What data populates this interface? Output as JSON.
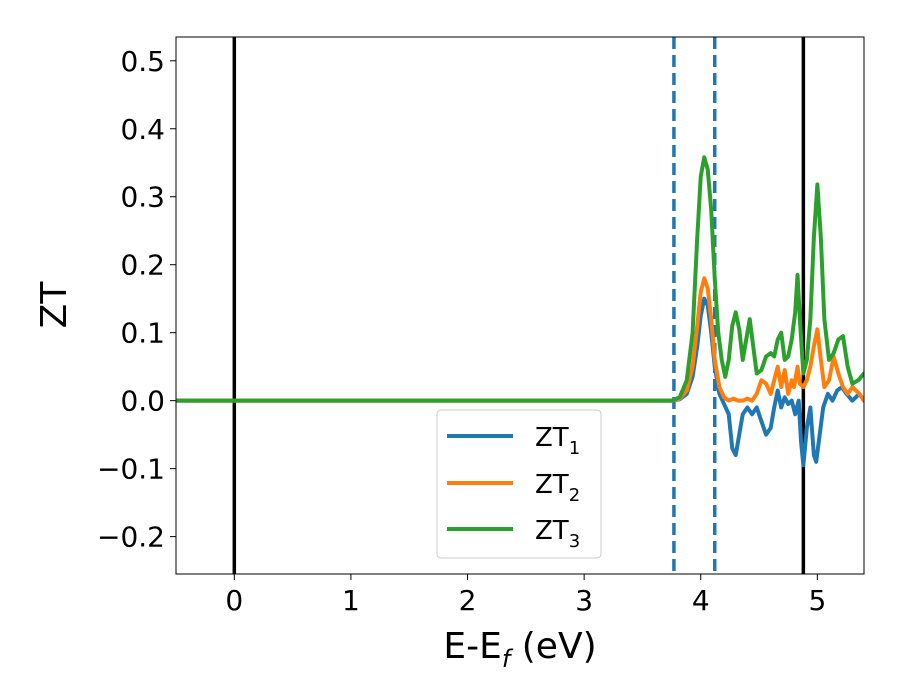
{
  "chart_data": {
    "type": "line",
    "xlabel": "E-E",
    "xlabel_sub": "f",
    "xlabel_unit": " (eV)",
    "ylabel": "ZT",
    "xlim": [
      -0.5,
      5.4
    ],
    "ylim": [
      -0.255,
      0.535
    ],
    "x_ticks": [
      0,
      1,
      2,
      3,
      4,
      5
    ],
    "x_tick_labels": [
      "0",
      "1",
      "2",
      "3",
      "4",
      "5"
    ],
    "y_ticks": [
      -0.2,
      -0.1,
      0.0,
      0.1,
      0.2,
      0.3,
      0.4,
      0.5
    ],
    "y_tick_labels": [
      "−0.2",
      "−0.1",
      "0.0",
      "0.1",
      "0.2",
      "0.3",
      "0.4",
      "0.5"
    ],
    "grid": false,
    "legend_position": "bottom-center",
    "vlines_solid": [
      0.0,
      4.88
    ],
    "vlines_dashed": [
      3.77,
      4.12
    ],
    "vline_solid_color": "#000000",
    "vline_dashed_color": "#1f77b4",
    "series": [
      {
        "name": "ZT",
        "name_sub": "1",
        "color": "#1f77b4",
        "points": [
          [
            -0.5,
            0.0
          ],
          [
            3.6,
            0.0
          ],
          [
            3.75,
            0.0
          ],
          [
            3.82,
            0.002
          ],
          [
            3.88,
            0.01
          ],
          [
            3.93,
            0.035
          ],
          [
            3.97,
            0.08
          ],
          [
            4.0,
            0.125
          ],
          [
            4.03,
            0.15
          ],
          [
            4.06,
            0.14
          ],
          [
            4.09,
            0.1
          ],
          [
            4.12,
            0.05
          ],
          [
            4.16,
            0.01
          ],
          [
            4.2,
            -0.005
          ],
          [
            4.24,
            -0.02
          ],
          [
            4.27,
            -0.07
          ],
          [
            4.3,
            -0.08
          ],
          [
            4.33,
            -0.05
          ],
          [
            4.36,
            -0.02
          ],
          [
            4.4,
            -0.01
          ],
          [
            4.44,
            -0.02
          ],
          [
            4.48,
            -0.01
          ],
          [
            4.52,
            -0.03
          ],
          [
            4.56,
            -0.05
          ],
          [
            4.6,
            -0.04
          ],
          [
            4.63,
            -0.01
          ],
          [
            4.66,
            0.015
          ],
          [
            4.69,
            -0.01
          ],
          [
            4.72,
            0.005
          ],
          [
            4.75,
            -0.005
          ],
          [
            4.78,
            0.0
          ],
          [
            4.81,
            -0.02
          ],
          [
            4.84,
            0.0
          ],
          [
            4.86,
            -0.06
          ],
          [
            4.88,
            -0.095
          ],
          [
            4.91,
            -0.04
          ],
          [
            4.94,
            -0.01
          ],
          [
            4.97,
            -0.08
          ],
          [
            4.99,
            -0.09
          ],
          [
            5.02,
            -0.05
          ],
          [
            5.05,
            -0.01
          ],
          [
            5.09,
            0.01
          ],
          [
            5.13,
            0.0
          ],
          [
            5.17,
            0.015
          ],
          [
            5.21,
            0.02
          ],
          [
            5.25,
            0.01
          ],
          [
            5.3,
            0.0
          ],
          [
            5.36,
            0.01
          ],
          [
            5.4,
            0.0
          ]
        ]
      },
      {
        "name": "ZT",
        "name_sub": "2",
        "color": "#ff7f0e",
        "points": [
          [
            -0.5,
            0.0
          ],
          [
            3.6,
            0.0
          ],
          [
            3.75,
            0.0
          ],
          [
            3.82,
            0.003
          ],
          [
            3.88,
            0.015
          ],
          [
            3.93,
            0.05
          ],
          [
            3.97,
            0.11
          ],
          [
            4.0,
            0.16
          ],
          [
            4.03,
            0.18
          ],
          [
            4.06,
            0.165
          ],
          [
            4.09,
            0.12
          ],
          [
            4.12,
            0.06
          ],
          [
            4.16,
            0.02
          ],
          [
            4.2,
            0.005
          ],
          [
            4.24,
            0.0
          ],
          [
            4.28,
            0.003
          ],
          [
            4.32,
            0.0
          ],
          [
            4.36,
            0.0
          ],
          [
            4.4,
            0.003
          ],
          [
            4.44,
            0.0
          ],
          [
            4.48,
            0.01
          ],
          [
            4.52,
            0.03
          ],
          [
            4.56,
            0.025
          ],
          [
            4.6,
            0.01
          ],
          [
            4.63,
            0.03
          ],
          [
            4.66,
            0.05
          ],
          [
            4.69,
            0.02
          ],
          [
            4.72,
            0.045
          ],
          [
            4.75,
            0.01
          ],
          [
            4.78,
            0.03
          ],
          [
            4.8,
            0.02
          ],
          [
            4.83,
            0.05
          ],
          [
            4.85,
            0.025
          ],
          [
            4.88,
            0.02
          ],
          [
            4.91,
            0.03
          ],
          [
            4.94,
            0.05
          ],
          [
            4.97,
            0.08
          ],
          [
            5.0,
            0.105
          ],
          [
            5.03,
            0.06
          ],
          [
            5.06,
            0.02
          ],
          [
            5.1,
            0.03
          ],
          [
            5.14,
            0.065
          ],
          [
            5.18,
            0.04
          ],
          [
            5.22,
            0.02
          ],
          [
            5.26,
            0.01
          ],
          [
            5.3,
            0.02
          ],
          [
            5.36,
            0.01
          ],
          [
            5.4,
            0.0
          ]
        ]
      },
      {
        "name": "ZT",
        "name_sub": "3",
        "color": "#2ca02c",
        "points": [
          [
            -0.5,
            0.0
          ],
          [
            3.6,
            0.0
          ],
          [
            3.75,
            0.0
          ],
          [
            3.82,
            0.005
          ],
          [
            3.88,
            0.03
          ],
          [
            3.93,
            0.1
          ],
          [
            3.97,
            0.24
          ],
          [
            4.0,
            0.33
          ],
          [
            4.03,
            0.358
          ],
          [
            4.06,
            0.34
          ],
          [
            4.09,
            0.28
          ],
          [
            4.12,
            0.18
          ],
          [
            4.15,
            0.1
          ],
          [
            4.18,
            0.06
          ],
          [
            4.21,
            0.035
          ],
          [
            4.24,
            0.06
          ],
          [
            4.27,
            0.11
          ],
          [
            4.3,
            0.13
          ],
          [
            4.33,
            0.105
          ],
          [
            4.36,
            0.06
          ],
          [
            4.39,
            0.09
          ],
          [
            4.42,
            0.12
          ],
          [
            4.45,
            0.08
          ],
          [
            4.48,
            0.04
          ],
          [
            4.52,
            0.045
          ],
          [
            4.56,
            0.065
          ],
          [
            4.6,
            0.07
          ],
          [
            4.63,
            0.065
          ],
          [
            4.66,
            0.09
          ],
          [
            4.69,
            0.1
          ],
          [
            4.72,
            0.06
          ],
          [
            4.75,
            0.065
          ],
          [
            4.78,
            0.09
          ],
          [
            4.81,
            0.13
          ],
          [
            4.83,
            0.185
          ],
          [
            4.85,
            0.12
          ],
          [
            4.88,
            0.04
          ],
          [
            4.91,
            0.06
          ],
          [
            4.94,
            0.12
          ],
          [
            4.97,
            0.24
          ],
          [
            5.0,
            0.318
          ],
          [
            5.03,
            0.24
          ],
          [
            5.06,
            0.12
          ],
          [
            5.1,
            0.06
          ],
          [
            5.14,
            0.07
          ],
          [
            5.18,
            0.09
          ],
          [
            5.22,
            0.095
          ],
          [
            5.26,
            0.05
          ],
          [
            5.3,
            0.025
          ],
          [
            5.35,
            0.03
          ],
          [
            5.4,
            0.04
          ]
        ]
      }
    ]
  }
}
